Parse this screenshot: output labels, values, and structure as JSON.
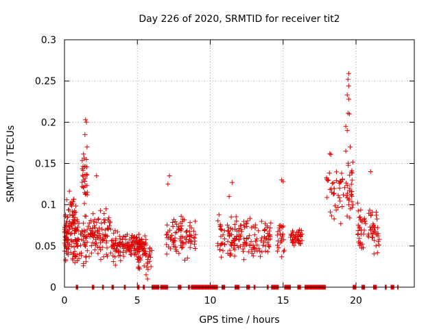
{
  "chart_data": {
    "type": "scatter",
    "title": "Day 226 of 2020, SRMTID for receiver tit2",
    "xlabel": "GPS time / hours",
    "ylabel": "SRMTID / TECUs",
    "xlim": [
      0,
      24
    ],
    "ylim": [
      0,
      0.3
    ],
    "x_ticks": [
      0,
      5,
      10,
      15,
      20
    ],
    "x_tick_labels": [
      "0",
      "5",
      "10",
      "15",
      "20"
    ],
    "y_ticks": [
      0,
      0.05,
      0.1,
      0.15,
      0.2,
      0.25,
      0.3
    ],
    "y_tick_labels": [
      "0",
      "0.05",
      "0.1",
      "0.15",
      "0.2",
      "0.25",
      "0.3"
    ],
    "grid": true,
    "marker": "+",
    "color": "#e00000",
    "series": [
      {
        "name": "SRMTID",
        "clusters": [
          {
            "x_range": [
              0.0,
              0.9
            ],
            "y_mean": 0.065,
            "y_spread": 0.025,
            "count": 110
          },
          {
            "x_range": [
              0.3,
              0.7
            ],
            "y_mean": 0.1,
            "y_spread": 0.01,
            "count": 14
          },
          {
            "x_range": [
              0.9,
              1.6
            ],
            "y_mean": 0.055,
            "y_spread": 0.02,
            "count": 40
          },
          {
            "x_range": [
              1.2,
              1.6
            ],
            "y_mean": 0.13,
            "y_spread": 0.025,
            "count": 30
          },
          {
            "x_range": [
              1.6,
              3.2
            ],
            "y_mean": 0.065,
            "y_spread": 0.02,
            "count": 90
          },
          {
            "x_range": [
              3.2,
              5.6
            ],
            "y_mean": 0.05,
            "y_spread": 0.012,
            "count": 150
          },
          {
            "x_range": [
              5.0,
              6.0
            ],
            "y_mean": 0.04,
            "y_spread": 0.015,
            "count": 35
          },
          {
            "x_range": [
              6.9,
              9.0
            ],
            "y_mean": 0.06,
            "y_spread": 0.015,
            "count": 90
          },
          {
            "x_range": [
              10.5,
              14.2
            ],
            "y_mean": 0.06,
            "y_spread": 0.016,
            "count": 160
          },
          {
            "x_range": [
              14.6,
              15.1
            ],
            "y_mean": 0.065,
            "y_spread": 0.02,
            "count": 25
          },
          {
            "x_range": [
              15.5,
              16.3
            ],
            "y_mean": 0.06,
            "y_spread": 0.008,
            "count": 40
          },
          {
            "x_range": [
              17.9,
              19.8
            ],
            "y_mean": 0.12,
            "y_spread": 0.03,
            "count": 70
          },
          {
            "x_range": [
              20.1,
              21.6
            ],
            "y_mean": 0.07,
            "y_spread": 0.02,
            "count": 70
          }
        ],
        "peaks": [
          {
            "x": 1.45,
            "y": 0.203
          },
          {
            "x": 1.5,
            "y": 0.2
          },
          {
            "x": 1.4,
            "y": 0.185
          },
          {
            "x": 1.55,
            "y": 0.17
          },
          {
            "x": 1.5,
            "y": 0.155
          },
          {
            "x": 2.2,
            "y": 0.135
          },
          {
            "x": 7.2,
            "y": 0.135
          },
          {
            "x": 7.1,
            "y": 0.125
          },
          {
            "x": 11.5,
            "y": 0.127
          },
          {
            "x": 11.3,
            "y": 0.11
          },
          {
            "x": 14.9,
            "y": 0.13
          },
          {
            "x": 15.0,
            "y": 0.128
          },
          {
            "x": 19.5,
            "y": 0.259
          },
          {
            "x": 19.45,
            "y": 0.252
          },
          {
            "x": 19.5,
            "y": 0.244
          },
          {
            "x": 19.4,
            "y": 0.233
          },
          {
            "x": 19.5,
            "y": 0.228
          },
          {
            "x": 19.45,
            "y": 0.211
          },
          {
            "x": 19.55,
            "y": 0.21
          },
          {
            "x": 19.3,
            "y": 0.195
          },
          {
            "x": 19.4,
            "y": 0.19
          },
          {
            "x": 19.6,
            "y": 0.17
          },
          {
            "x": 19.3,
            "y": 0.165
          },
          {
            "x": 18.2,
            "y": 0.162
          },
          {
            "x": 21.0,
            "y": 0.14
          },
          {
            "x": 5.7,
            "y": 0.01
          },
          {
            "x": 5.6,
            "y": 0.015
          }
        ],
        "zero_segments": [
          [
            0.8,
            0.95
          ],
          [
            1.9,
            2.05
          ],
          [
            2.6,
            2.7
          ],
          [
            3.25,
            3.4
          ],
          [
            4.1,
            4.2
          ],
          [
            5.0,
            5.15
          ],
          [
            5.4,
            5.5
          ],
          [
            6.0,
            6.5
          ],
          [
            6.6,
            7.1
          ],
          [
            7.8,
            8.0
          ],
          [
            8.5,
            8.6
          ],
          [
            8.7,
            10.5
          ],
          [
            10.8,
            11.0
          ],
          [
            11.7,
            12.0
          ],
          [
            12.5,
            12.7
          ],
          [
            13.0,
            13.1
          ],
          [
            13.9,
            14.0
          ],
          [
            14.2,
            14.7
          ],
          [
            15.1,
            15.5
          ],
          [
            16.0,
            16.2
          ],
          [
            16.5,
            17.9
          ],
          [
            19.8,
            20.0
          ],
          [
            20.4,
            20.6
          ],
          [
            21.2,
            21.4
          ],
          [
            22.0,
            22.1
          ],
          [
            22.4,
            22.6
          ],
          [
            22.85,
            22.9
          ]
        ]
      }
    ]
  }
}
